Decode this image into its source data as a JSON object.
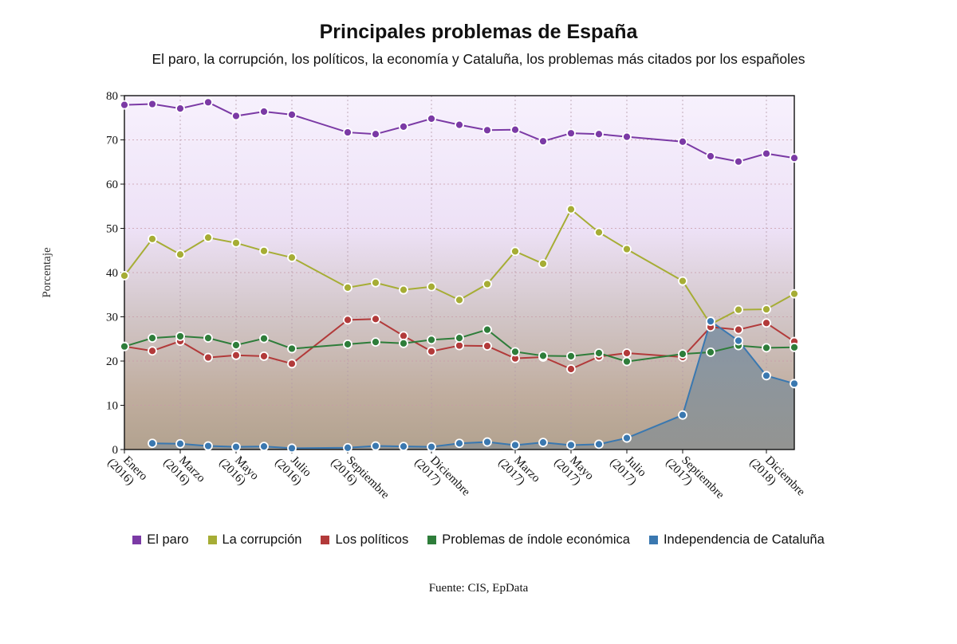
{
  "chart_data": {
    "type": "line",
    "title": "Principales problemas de España",
    "subtitle": "El paro, la corrupción, los políticos, la economía y Cataluña, los problemas más citados por los españoles",
    "ylabel": "Porcentaje",
    "ylim": [
      0,
      80
    ],
    "yticks": [
      0,
      10,
      20,
      30,
      40,
      50,
      60,
      70,
      80
    ],
    "source": "Fuente: CIS, EpData",
    "x": [
      0,
      1,
      2,
      3,
      4,
      5,
      6,
      8,
      9,
      10,
      11,
      12,
      13,
      14,
      15,
      16,
      17,
      18,
      19,
      20,
      21,
      22,
      23,
      24
    ],
    "x_labels": [
      {
        "pos": 0,
        "lines": [
          "Enero",
          "(2016)"
        ]
      },
      {
        "pos": 2,
        "lines": [
          "Marzo",
          "(2016)"
        ]
      },
      {
        "pos": 4,
        "lines": [
          "Mayo",
          "(2016)"
        ]
      },
      {
        "pos": 6,
        "lines": [
          "Julio",
          "(2016)"
        ]
      },
      {
        "pos": 8,
        "lines": [
          "Septiembre",
          "(2016)"
        ]
      },
      {
        "pos": 11,
        "lines": [
          "Diciembre",
          "(2017)"
        ]
      },
      {
        "pos": 14,
        "lines": [
          "Marzo",
          "(2017)"
        ]
      },
      {
        "pos": 16,
        "lines": [
          "Mayo",
          "(2017)"
        ]
      },
      {
        "pos": 18,
        "lines": [
          "Julio",
          "(2017)"
        ]
      },
      {
        "pos": 20,
        "lines": [
          "Septiembre",
          "(2017)"
        ]
      },
      {
        "pos": 23,
        "lines": [
          "Diciembre",
          "(2018)"
        ]
      }
    ],
    "series": [
      {
        "name": "El paro",
        "color": "#7b3aa5",
        "points": [
          [
            0,
            77.9
          ],
          [
            1,
            78.1
          ],
          [
            2,
            77.1
          ],
          [
            3,
            78.5
          ],
          [
            4,
            75.4
          ],
          [
            5,
            76.4
          ],
          [
            6,
            75.7
          ],
          [
            8,
            71.7
          ],
          [
            9,
            71.3
          ],
          [
            10,
            73.0
          ],
          [
            11,
            74.8
          ],
          [
            12,
            73.4
          ],
          [
            13,
            72.2
          ],
          [
            14,
            72.3
          ],
          [
            15,
            69.7
          ],
          [
            16,
            71.5
          ],
          [
            17,
            71.3
          ],
          [
            18,
            70.7
          ],
          [
            20,
            69.6
          ],
          [
            21,
            66.3
          ],
          [
            22,
            65.1
          ],
          [
            23,
            66.9
          ],
          [
            24,
            65.9
          ]
        ]
      },
      {
        "name": "La corrupción",
        "color": "#a6ad35",
        "points": [
          [
            0,
            39.3
          ],
          [
            1,
            47.6
          ],
          [
            2,
            44.1
          ],
          [
            3,
            47.9
          ],
          [
            4,
            46.7
          ],
          [
            5,
            44.9
          ],
          [
            6,
            43.4
          ],
          [
            8,
            36.6
          ],
          [
            9,
            37.7
          ],
          [
            10,
            36.1
          ],
          [
            11,
            36.8
          ],
          [
            12,
            33.8
          ],
          [
            13,
            37.4
          ],
          [
            14,
            44.8
          ],
          [
            15,
            42.0
          ],
          [
            16,
            54.3
          ],
          [
            17,
            49.1
          ],
          [
            18,
            45.3
          ],
          [
            20,
            38.1
          ],
          [
            21,
            28.3
          ],
          [
            22,
            31.6
          ],
          [
            23,
            31.7
          ],
          [
            24,
            35.2
          ]
        ]
      },
      {
        "name": "Los políticos",
        "color": "#b23a3a",
        "points": [
          [
            0,
            23.3
          ],
          [
            1,
            22.3
          ],
          [
            2,
            24.5
          ],
          [
            3,
            20.8
          ],
          [
            4,
            21.3
          ],
          [
            5,
            21.1
          ],
          [
            6,
            19.4
          ],
          [
            8,
            29.3
          ],
          [
            9,
            29.5
          ],
          [
            10,
            25.7
          ],
          [
            11,
            22.2
          ],
          [
            12,
            23.5
          ],
          [
            13,
            23.4
          ],
          [
            14,
            20.6
          ],
          [
            15,
            20.9
          ],
          [
            16,
            18.2
          ],
          [
            17,
            21.0
          ],
          [
            18,
            21.8
          ],
          [
            20,
            20.9
          ],
          [
            21,
            27.7
          ],
          [
            22,
            27.1
          ],
          [
            23,
            28.6
          ],
          [
            24,
            24.4
          ]
        ]
      },
      {
        "name": "Problemas de índole económica",
        "color": "#2e7d3a",
        "points": [
          [
            0,
            23.3
          ],
          [
            1,
            25.2
          ],
          [
            2,
            25.6
          ],
          [
            3,
            25.2
          ],
          [
            4,
            23.6
          ],
          [
            5,
            25.1
          ],
          [
            6,
            22.8
          ],
          [
            8,
            23.8
          ],
          [
            9,
            24.3
          ],
          [
            10,
            24.0
          ],
          [
            11,
            24.8
          ],
          [
            12,
            25.2
          ],
          [
            13,
            27.1
          ],
          [
            14,
            22.1
          ],
          [
            15,
            21.2
          ],
          [
            16,
            21.1
          ],
          [
            17,
            21.8
          ],
          [
            18,
            19.9
          ],
          [
            20,
            21.6
          ],
          [
            21,
            22.0
          ],
          [
            22,
            23.5
          ],
          [
            23,
            23.0
          ],
          [
            24,
            23.1
          ]
        ]
      },
      {
        "name": "Independencia de Cataluña",
        "color": "#3a78b0",
        "points": [
          [
            1,
            1.4
          ],
          [
            2,
            1.3
          ],
          [
            3,
            0.8
          ],
          [
            4,
            0.6
          ],
          [
            5,
            0.7
          ],
          [
            6,
            0.3
          ],
          [
            8,
            0.4
          ],
          [
            9,
            0.8
          ],
          [
            10,
            0.7
          ],
          [
            11,
            0.6
          ],
          [
            12,
            1.4
          ],
          [
            13,
            1.7
          ],
          [
            14,
            1.0
          ],
          [
            15,
            1.6
          ],
          [
            16,
            1.0
          ],
          [
            17,
            1.2
          ],
          [
            18,
            2.6
          ],
          [
            20,
            7.8
          ],
          [
            21,
            29.0
          ],
          [
            22,
            24.6
          ],
          [
            23,
            16.7
          ],
          [
            24,
            14.9
          ]
        ]
      }
    ]
  }
}
